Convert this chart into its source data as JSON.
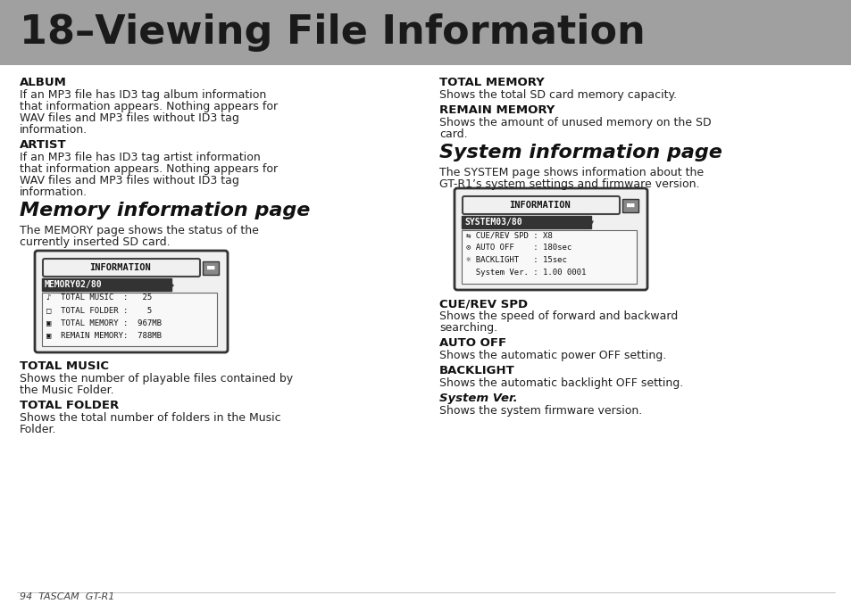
{
  "title": "18–Viewing File Information",
  "title_bg": "#a0a0a0",
  "title_color": "#1a1a1a",
  "page_bg": "#ffffff",
  "body_text_color": "#1a1a1a",
  "footer_text": "94  TASCAM  GT-R1",
  "col1_sections": [
    {
      "heading": "ALBUM",
      "heading_bold": true,
      "body": "If an MP3 file has ID3 tag album information that information appears. Nothing appears for WAV files and MP3 files without ID3 tag information."
    },
    {
      "heading": "ARTIST",
      "heading_bold": true,
      "body": "If an MP3 file has ID3 tag artist information that information appears. Nothing appears for WAV files and MP3 files without ID3 tag information."
    },
    {
      "heading": "Memory information page",
      "heading_bold": false,
      "heading_size": "large",
      "body": "The MEMORY page shows the status of the currently inserted SD card."
    },
    {
      "heading": "TOTAL MUSIC",
      "heading_bold": true,
      "body": "Shows the number of playable files contained by the Music Folder."
    },
    {
      "heading": "TOTAL FOLDER",
      "heading_bold": true,
      "body": "Shows the total number of folders in the Music Folder."
    }
  ],
  "col2_sections": [
    {
      "heading": "TOTAL MEMORY",
      "heading_bold": true,
      "body": "Shows the total SD card memory capacity."
    },
    {
      "heading": "REMAIN MEMORY",
      "heading_bold": true,
      "body": "Shows the amount of unused memory on the SD card."
    },
    {
      "heading": "System information page",
      "heading_bold": false,
      "heading_size": "large",
      "body": "The SYSTEM page shows information about the GT-R1’s system settings and firmware version."
    },
    {
      "heading": "CUE/REV SPD",
      "heading_bold": true,
      "body": "Shows the speed of forward and backward searching."
    },
    {
      "heading": "AUTO OFF",
      "heading_bold": true,
      "body": "Shows the automatic power OFF setting."
    },
    {
      "heading": "BACKLIGHT",
      "heading_bold": true,
      "body": "Shows the automatic backlight OFF setting."
    },
    {
      "heading": "System Ver.",
      "heading_bold": false,
      "heading_italic_bold": true,
      "body": "Shows the system firmware version."
    }
  ],
  "lcd_memory": {
    "title_text": "INFORMATION",
    "subtitle_text": "MEMORY02/80",
    "lines": [
      "♪  TOTAL MUSIC  :   25",
      "□  TOTAL FOLDER :    5",
      "▣  TOTAL MEMORY :  967MB",
      "▣  REMAIN MEMORY:  788MB"
    ]
  },
  "lcd_system": {
    "title_text": "INFORMATION",
    "subtitle_text": "SYSTEM03/80",
    "lines": [
      "⇆ CUE/REV SPD : X8",
      "⊙ AUTO OFF    : 180sec",
      "☼ BACKLIGHT   : 15sec",
      "  System Ver. : 1.00 0001"
    ]
  }
}
